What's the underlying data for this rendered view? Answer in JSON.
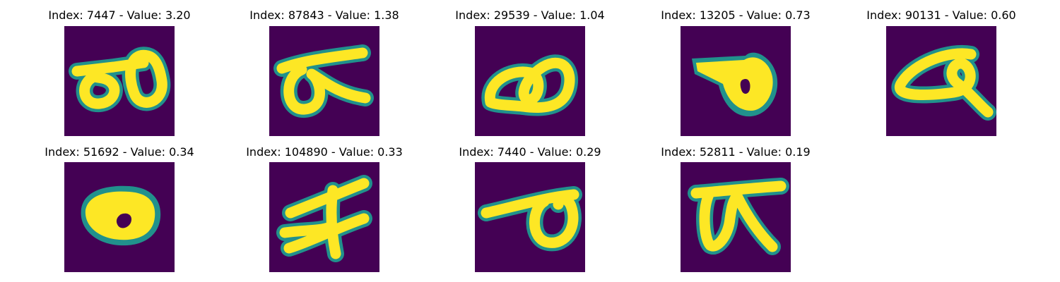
{
  "figure": {
    "background_color": "#440154",
    "glyph_color": "#fde725",
    "glyph_edge_color": "#21918c",
    "panels": [
      {
        "title": "Index: 7447 - Value: 3.20",
        "glyph": "two-loop-glyph"
      },
      {
        "title": "Index: 87843 - Value: 1.38",
        "glyph": "loop-with-bar-glyph"
      },
      {
        "title": "Index: 29539 - Value: 1.04",
        "glyph": "curled-loop-glyph"
      },
      {
        "title": "Index: 13205 - Value: 0.73",
        "glyph": "filled-blob-glyph"
      },
      {
        "title": "Index: 90131 - Value: 0.60",
        "glyph": "tailed-loop-glyph"
      },
      {
        "title": "Index: 51692 - Value: 0.34",
        "glyph": "ring-glyph"
      },
      {
        "title": "Index: 104890 - Value: 0.33",
        "glyph": "crossed-strokes-glyph"
      },
      {
        "title": "Index: 7440 - Value: 0.29",
        "glyph": "bar-and-loop-glyph"
      },
      {
        "title": "Index: 52811 - Value: 0.19",
        "glyph": "pi-like-glyph"
      }
    ]
  }
}
